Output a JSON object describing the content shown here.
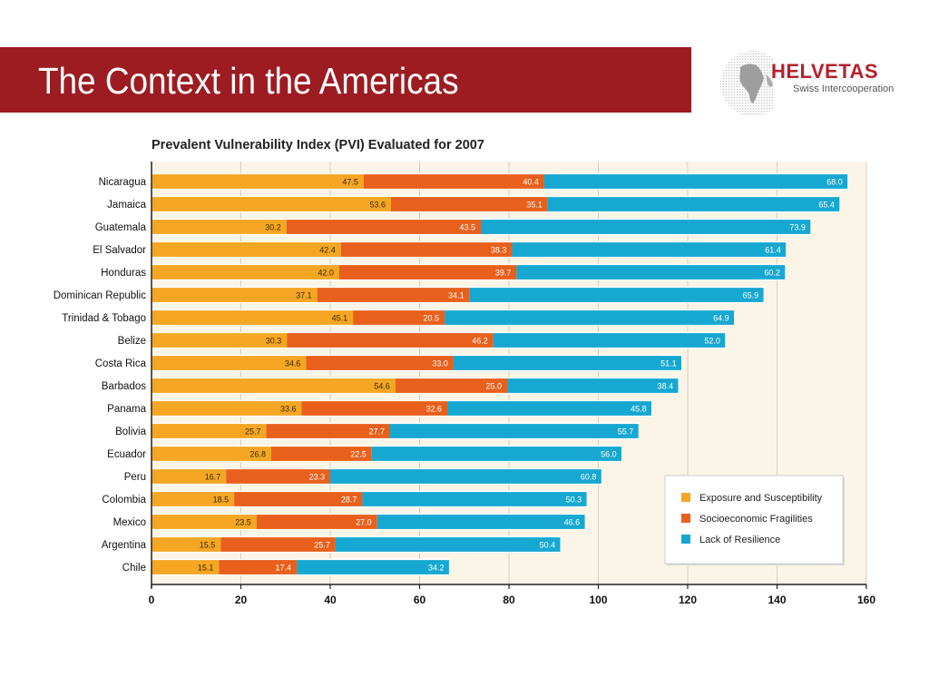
{
  "slide": {
    "title": "The Context in the Americas"
  },
  "logo": {
    "brand": "HELVETAS",
    "subtitle": "Swiss Intercooperation"
  },
  "colors": {
    "title_band": "#9d1c21",
    "plot_background": "#fbf5e8",
    "exposure": "#f5a623",
    "socioeconomic": "#e8601c",
    "resilience": "#17a8d1"
  },
  "chart_data": {
    "type": "bar",
    "orientation": "horizontal",
    "stacked": true,
    "title": "Prevalent Vulnerability Index (PVI) Evaluated for 2007",
    "xlim": [
      0,
      160
    ],
    "xticks": [
      0,
      20,
      40,
      60,
      80,
      100,
      120,
      140,
      160
    ],
    "grid": true,
    "legend_position": "bottom-right",
    "categories": [
      "Nicaragua",
      "Jamaica",
      "Guatemala",
      "El Salvador",
      "Honduras",
      "Dominican Republic",
      "Trinidad & Tobago",
      "Belize",
      "Costa Rica",
      "Barbados",
      "Panama",
      "Bolivia",
      "Ecuador",
      "Peru",
      "Colombia",
      "Mexico",
      "Argentina",
      "Chile"
    ],
    "series": [
      {
        "name": "Exposure and Susceptibility",
        "color": "#f5a623",
        "label_color": "#3a2a00",
        "labels": [
          "47.5",
          "53.6",
          "30.2",
          "42.4",
          "42.0",
          "37.1",
          "45.1",
          "30.3",
          "34.6",
          "54.6",
          "33.6",
          "25.7",
          "26.8",
          "16.7",
          "18.5",
          "23.5",
          "15.5",
          "15.1"
        ],
        "values": [
          47.5,
          53.6,
          30.2,
          42.4,
          42.0,
          37.1,
          45.1,
          30.3,
          34.6,
          54.6,
          33.6,
          25.7,
          26.8,
          16.7,
          18.5,
          23.5,
          15.5,
          15.1
        ],
        "drawn_values": [
          47.5,
          53.6,
          30.2,
          42.4,
          42.0,
          37.1,
          45.1,
          30.3,
          34.6,
          54.6,
          33.6,
          25.7,
          26.8,
          16.7,
          18.5,
          23.5,
          15.5,
          15.1
        ]
      },
      {
        "name": "Socioeconomic Fragilities",
        "color": "#e8601c",
        "label_color": "#ffffff",
        "labels": [
          "40.4",
          "35.1",
          "43.5",
          "38.3",
          "39.7",
          "34.1",
          "20.5",
          "46.2",
          "33.0",
          "25.0",
          "32.6",
          "27.7",
          "22.5",
          "23.3",
          "28.7",
          "27.0",
          "25.7",
          "17.4"
        ],
        "values": [
          40.4,
          35.1,
          43.5,
          38.3,
          39.7,
          34.1,
          20.5,
          46.2,
          33.0,
          25.0,
          32.6,
          27.7,
          22.5,
          23.3,
          28.7,
          27.0,
          25.7,
          17.4
        ],
        "drawn_values": [
          40.4,
          35.1,
          43.5,
          38.3,
          39.7,
          34.1,
          20.5,
          46.2,
          33.0,
          25.0,
          32.6,
          27.7,
          22.5,
          23.3,
          28.7,
          27.0,
          25.7,
          17.4
        ]
      },
      {
        "name": "Lack of Resilience",
        "color": "#17a8d1",
        "label_color": "#ffffff",
        "labels": [
          "68.0",
          "65.4",
          "73.9",
          "61.4",
          "60.2",
          "65.9",
          "64.9",
          "52.0",
          "51.1",
          "38.4",
          "45.8",
          "55.7",
          "56.0",
          "60.8",
          "50.3",
          "46.6",
          "50.4",
          "34.2"
        ],
        "values": [
          68.0,
          65.4,
          73.9,
          61.4,
          60.2,
          65.9,
          64.9,
          52.0,
          51.1,
          38.4,
          45.8,
          55.7,
          56.0,
          60.8,
          50.3,
          46.6,
          50.4,
          34.2
        ],
        "drawn_values": [
          68.0,
          65.4,
          73.9,
          61.4,
          60.2,
          65.9,
          64.9,
          52.0,
          51.1,
          38.4,
          45.8,
          55.7,
          56.0,
          60.8,
          50.3,
          46.6,
          50.4,
          34.2
        ]
      }
    ]
  }
}
